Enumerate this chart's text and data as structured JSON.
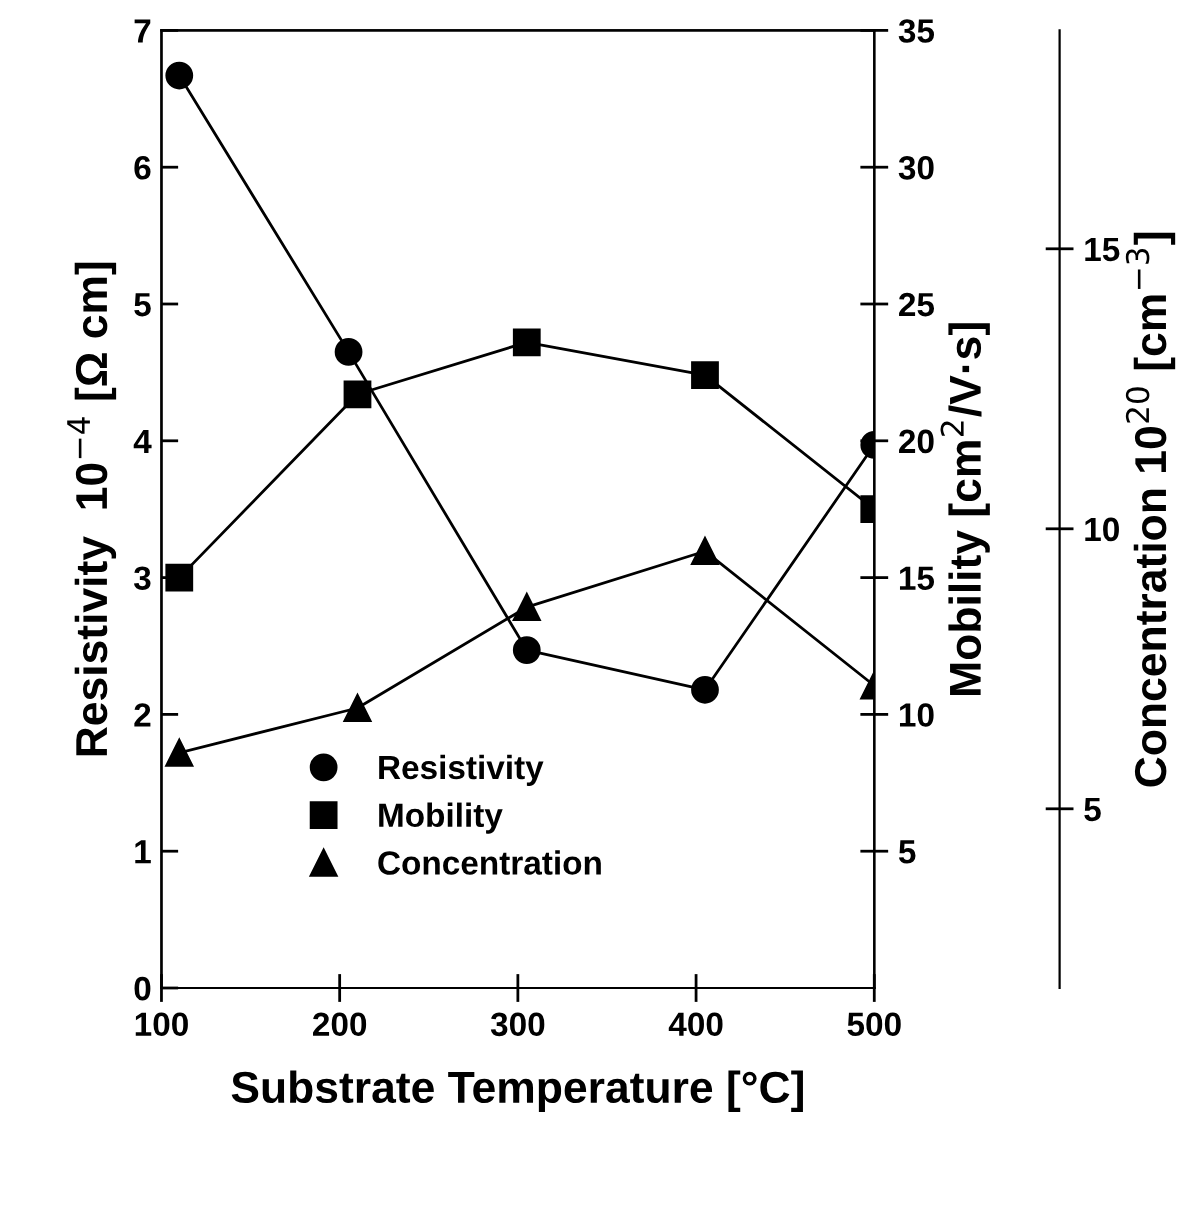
{
  "chart_data": {
    "type": "line",
    "xlabel": "Substrate Temperature [°C]",
    "ylabel": "Resistivity  10$^{−4}$ [Ω cm]",
    "y2label": "Mobility [cm$^{2}$/V·s]",
    "y3label": "Concentration 10$^{20}$ [cm$^{−3}$]",
    "xlim": [
      100,
      500
    ],
    "xticks": [
      100,
      200,
      300,
      400,
      500
    ],
    "ylim": [
      0,
      7
    ],
    "yticks": [
      0,
      1,
      2,
      3,
      4,
      5,
      6,
      7
    ],
    "y2lim": [
      0,
      35
    ],
    "y2ticks": [
      5,
      10,
      15,
      20,
      25,
      30,
      35
    ],
    "y3lim": [
      1.8,
      18.9
    ],
    "y3ticks": [
      5,
      10,
      15
    ],
    "grid": false,
    "legend": "bottom",
    "line_style": "solid",
    "series": [
      {
        "name": "Resistivity",
        "color": "#000000",
        "marker": "circle",
        "x": [
          110,
          205,
          305,
          405,
          500
        ],
        "values": [
          6.67,
          4.65,
          2.47,
          2.18,
          3.97
        ]
      },
      {
        "name": "Mobility",
        "color": "#000000",
        "marker": "square",
        "axis": "y2",
        "x": [
          110,
          210,
          305,
          405,
          500
        ],
        "values": [
          15.0,
          21.7,
          23.6,
          22.4,
          17.5
        ]
      },
      {
        "name": "Concentration",
        "color": "#000000",
        "marker": "triangle",
        "axis": "y3",
        "x": [
          110,
          210,
          305,
          405,
          500
        ],
        "values": [
          6.0,
          6.8,
          8.6,
          9.6,
          7.2
        ]
      }
    ]
  }
}
